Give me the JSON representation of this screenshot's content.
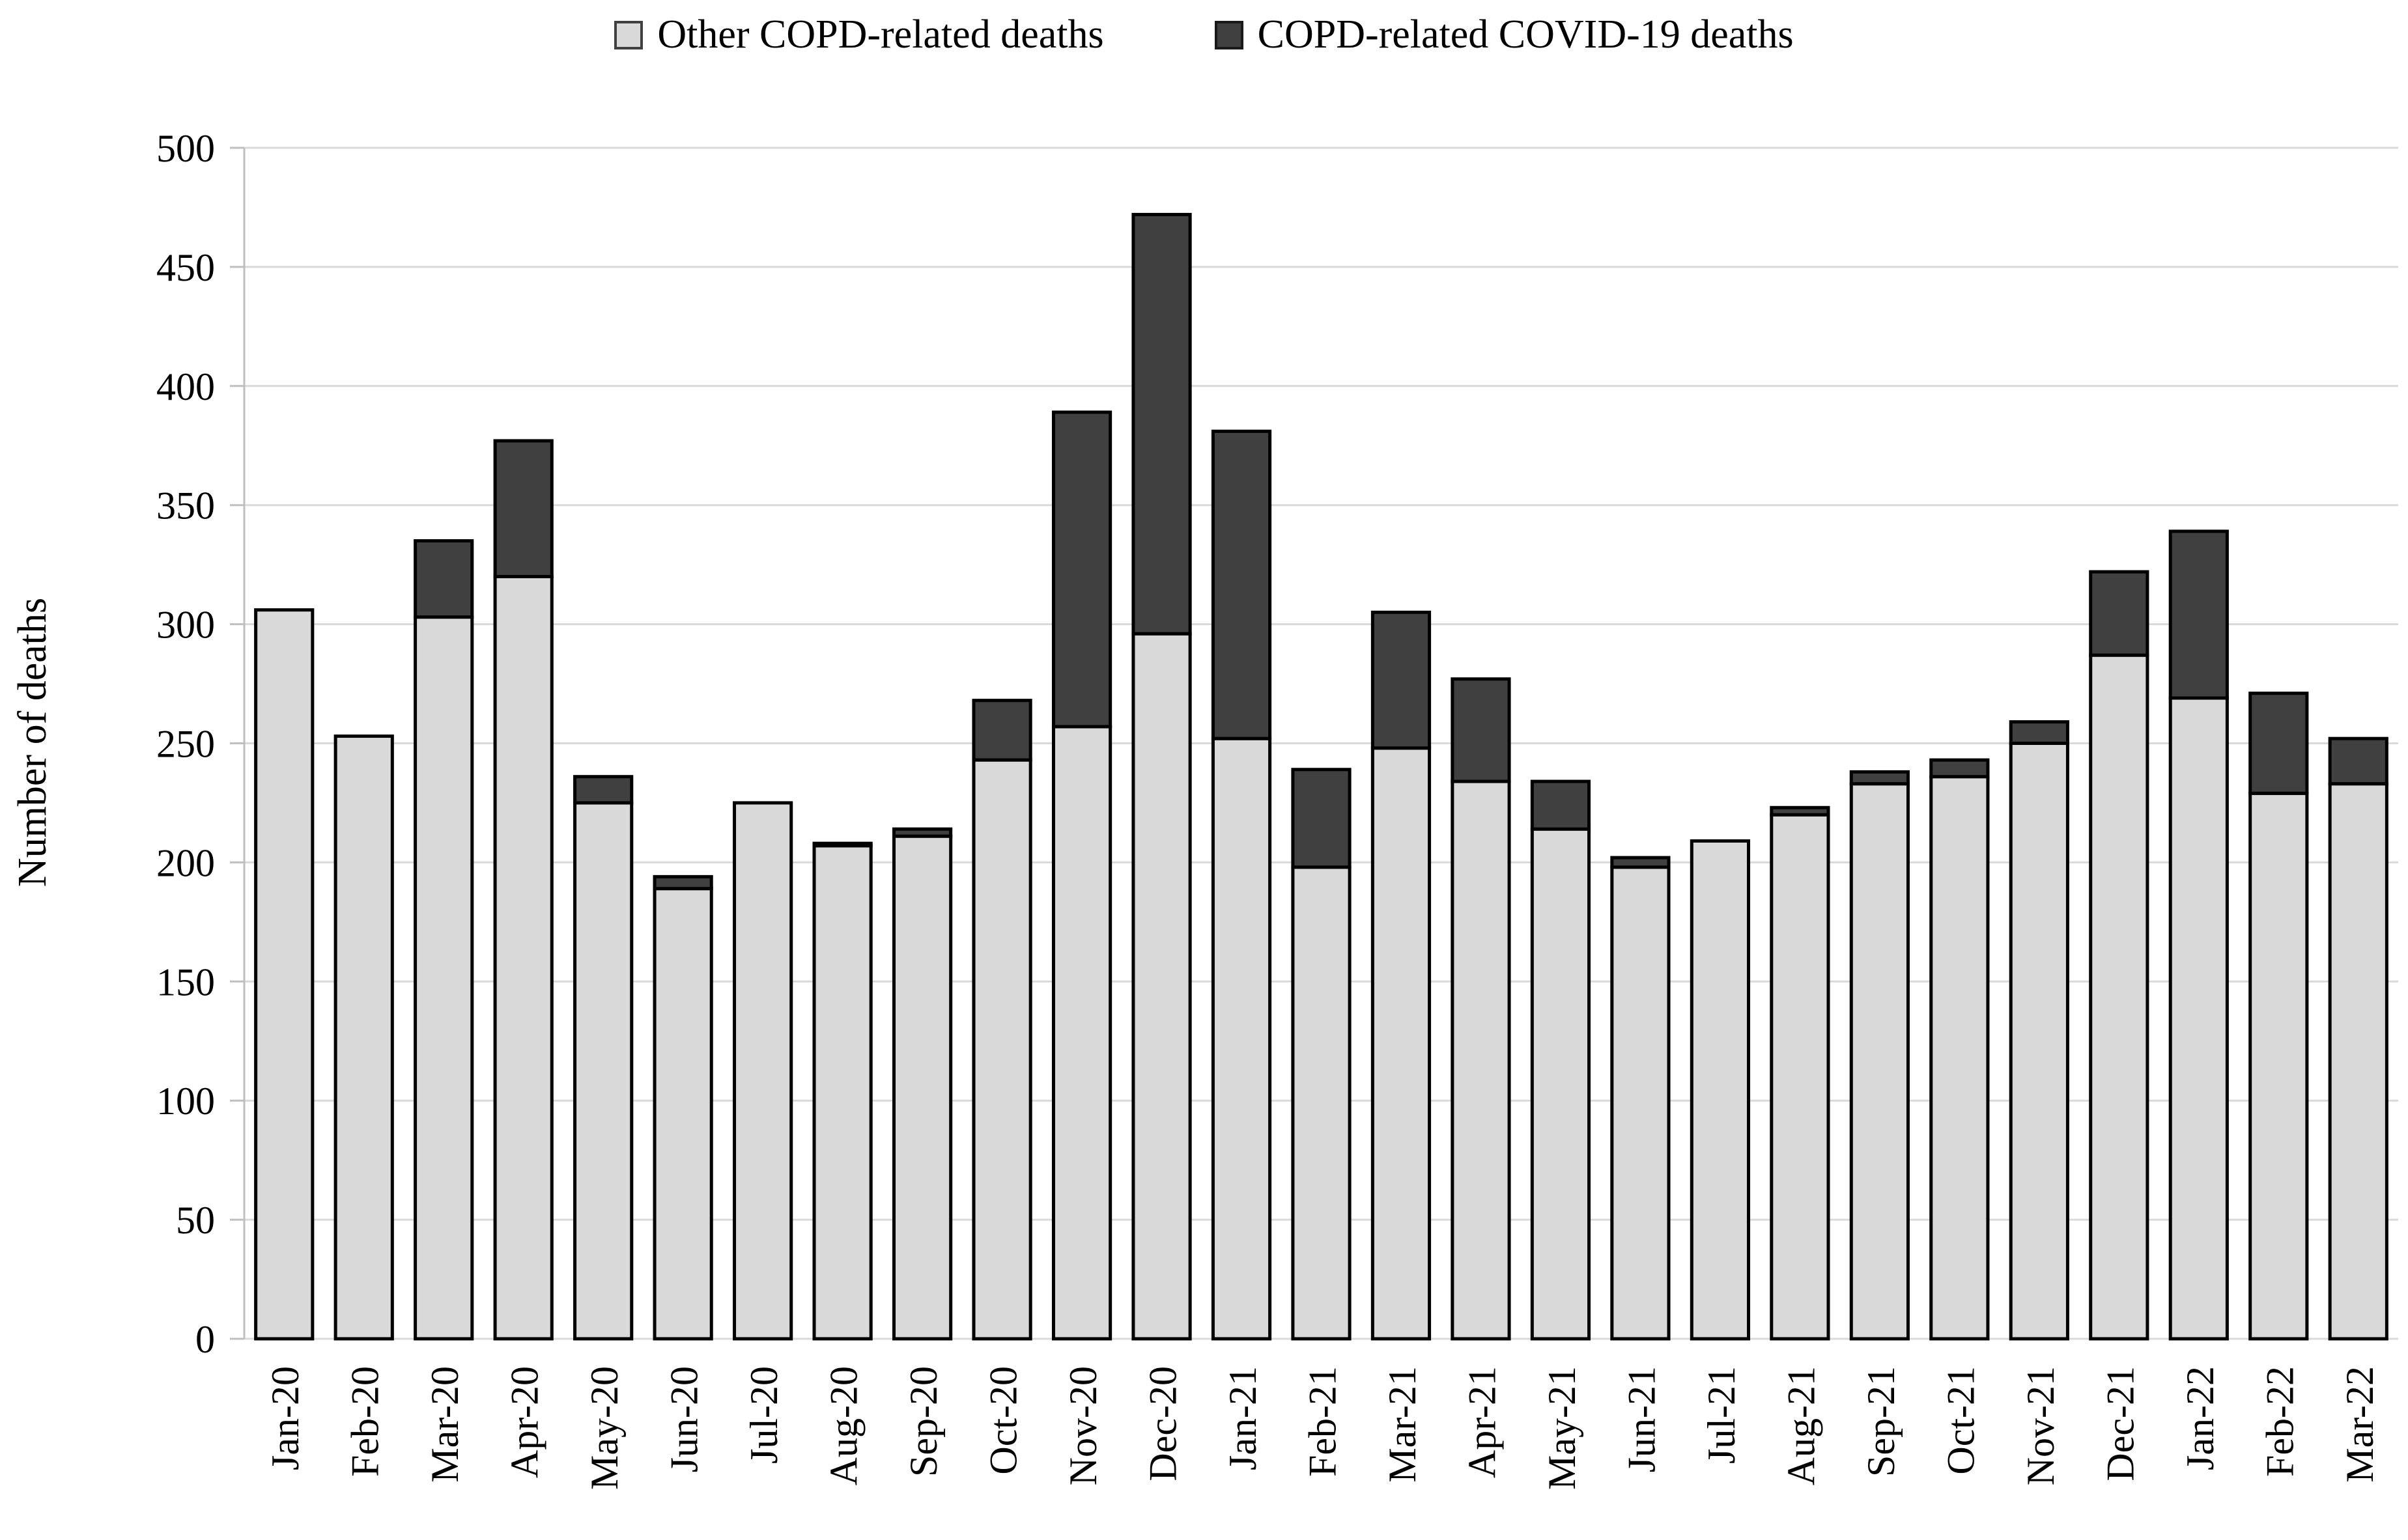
{
  "legend": {
    "items": [
      {
        "label": "Other COPD-related deaths",
        "color": "#d9d9d9",
        "border": "#404040"
      },
      {
        "label": "COPD-related COVID-19 deaths",
        "color": "#404040",
        "border": "#1a1a1a"
      }
    ]
  },
  "y_axis": {
    "title": "Number of deaths",
    "min": 0,
    "max": 500,
    "step": 50
  },
  "chart_data": {
    "type": "bar",
    "stacked": true,
    "title": "",
    "xlabel": "",
    "ylabel": "Number of deaths",
    "ylim": [
      0,
      500
    ],
    "ytick_step": 50,
    "grid": true,
    "legend_position": "top",
    "categories": [
      "Jan-20",
      "Feb-20",
      "Mar-20",
      "Apr-20",
      "May-20",
      "Jun-20",
      "Jul-20",
      "Aug-20",
      "Sep-20",
      "Oct-20",
      "Nov-20",
      "Dec-20",
      "Jan-21",
      "Feb-21",
      "Mar-21",
      "Apr-21",
      "May-21",
      "Jun-21",
      "Jul-21",
      "Aug-21",
      "Sep-21",
      "Oct-21",
      "Nov-21",
      "Dec-21",
      "Jan-22",
      "Feb-22",
      "Mar-22"
    ],
    "series": [
      {
        "name": "Other COPD-related deaths",
        "color": "#d9d9d9",
        "values": [
          306,
          253,
          303,
          320,
          225,
          189,
          225,
          207,
          211,
          243,
          257,
          296,
          252,
          198,
          248,
          234,
          214,
          198,
          209,
          220,
          233,
          236,
          250,
          287,
          269,
          229,
          233
        ]
      },
      {
        "name": "COPD-related COVID-19 deaths",
        "color": "#404040",
        "values": [
          0,
          0,
          32,
          57,
          11,
          5,
          0,
          1,
          3,
          25,
          132,
          176,
          129,
          41,
          57,
          43,
          20,
          4,
          0,
          3,
          5,
          7,
          9,
          35,
          70,
          42,
          19
        ]
      }
    ]
  },
  "colors": {
    "bar_border": "#000000",
    "gridline": "#d9d9d9",
    "axis_line": "#bfbfbf",
    "text": "#000000"
  }
}
